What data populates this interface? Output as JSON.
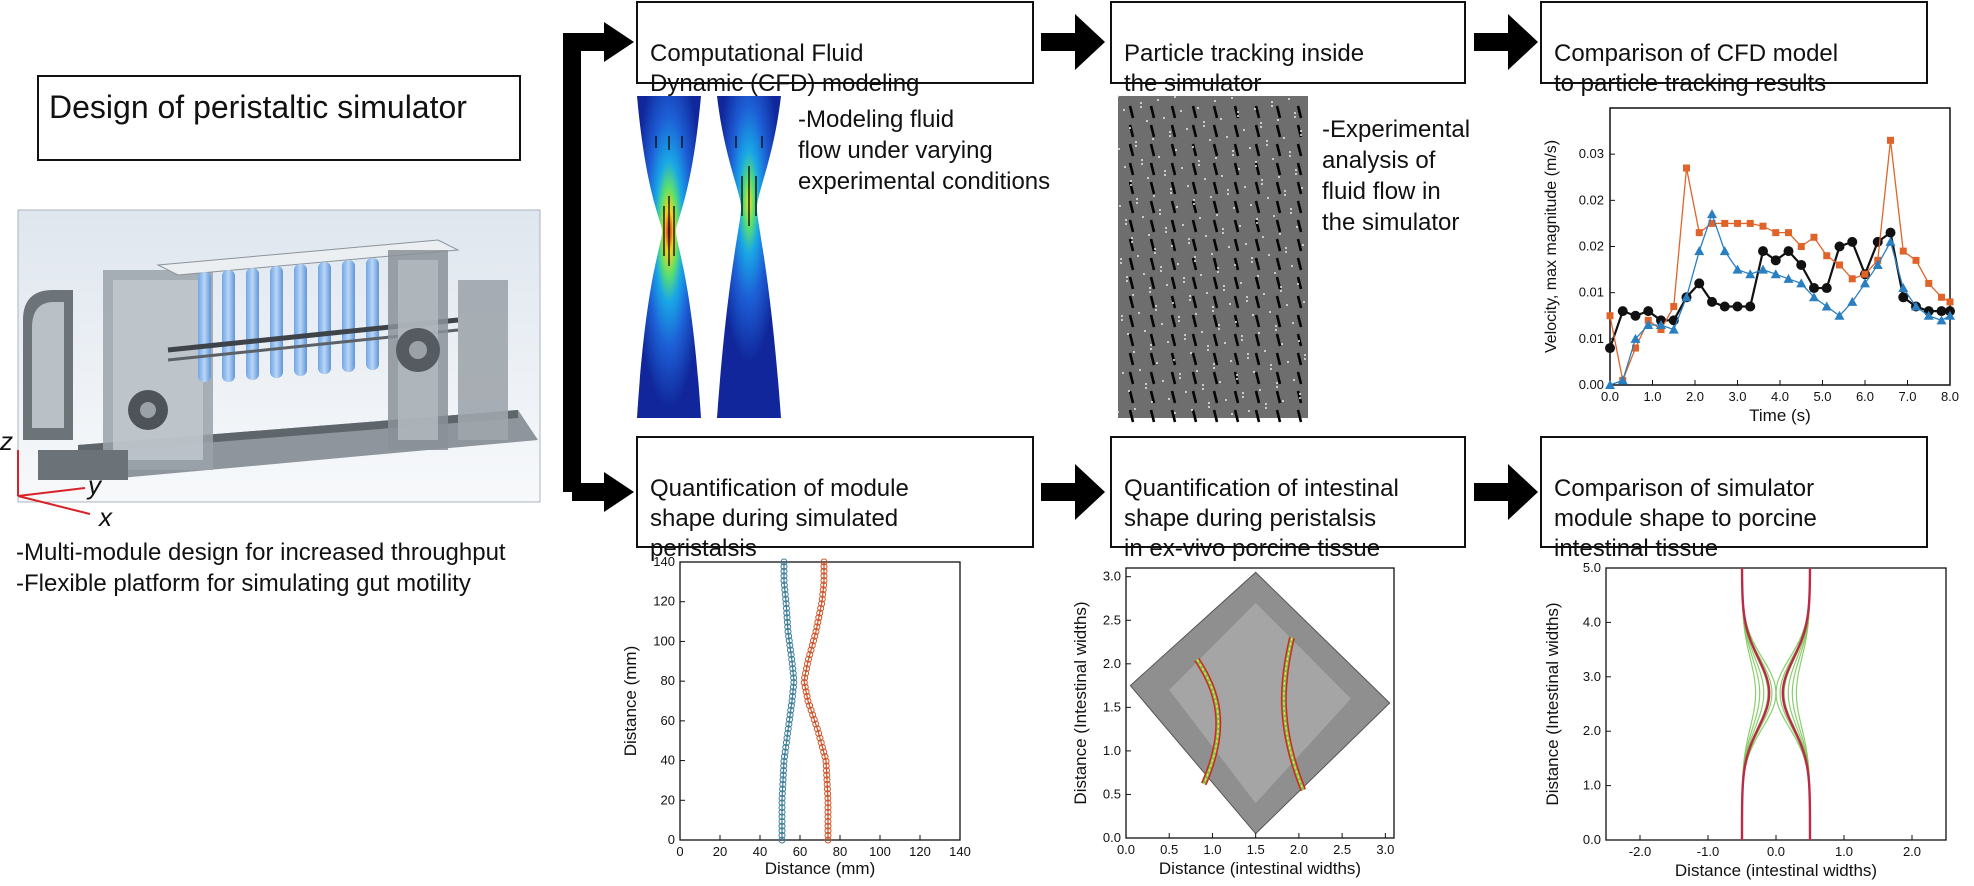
{
  "main_title": "Design of peristaltic simulator",
  "simulator_bullets": [
    "-Multi-module design for increased throughput",
    "-Flexible platform for simulating gut motility"
  ],
  "axes_labels": {
    "z": "z",
    "y": "y",
    "x": "x"
  },
  "top_row": {
    "cfd_title": "Computational Fluid\nDynamic (CFD) modeling",
    "cfd_note": "-Modeling fluid\nflow under varying\nexperimental conditions",
    "piv_title": "Particle tracking inside\nthe simulator",
    "piv_note": "-Experimental\nanalysis of\nfluid flow in\nthe simulator",
    "compare_title": "Comparison of CFD model\nto particle tracking results"
  },
  "bottom_row": {
    "module_title": "Quantification of module\nshape during simulated\nperistalsis",
    "tissue_title": "Quantification of intestinal\nshape during peristalsis\nin ex-vivo porcine tissue",
    "compare_title": "Comparison of simulator\nmodule shape to porcine\nintestinal tissue"
  },
  "colors": {
    "black_series": "#111111",
    "orange_series": "#e0642a",
    "blue_series": "#2a7fc1",
    "green_curve": "#6cc24a",
    "red_curve": "#d8232a",
    "yellow_curve": "#f1e34a"
  },
  "chart_data": [
    {
      "type": "line",
      "xlabel": "Time (s)",
      "ylabel": "Velocity, max magnitude (m/s)",
      "xlim": [
        0,
        8
      ],
      "ylim": [
        0,
        0.03
      ],
      "x_ticks": [
        "0.0",
        "1.0",
        "2.0",
        "3.0",
        "4.0",
        "5.0",
        "6.0",
        "7.0",
        "8.0"
      ],
      "y_ticks": [
        "0.00",
        "0.01",
        "0.01",
        "0.02",
        "0.02",
        "0.03"
      ],
      "y_tick_values": [
        0,
        0.005,
        0.01,
        0.015,
        0.02,
        0.025
      ],
      "series": [
        {
          "color": "black",
          "x": [
            0,
            0.3,
            0.6,
            0.9,
            1.2,
            1.5,
            1.8,
            2.1,
            2.4,
            2.7,
            3.0,
            3.3,
            3.6,
            3.9,
            4.2,
            4.5,
            4.8,
            5.1,
            5.4,
            5.7,
            6.0,
            6.3,
            6.6,
            6.9,
            7.2,
            7.5,
            7.8,
            8.0
          ],
          "y": [
            0.004,
            0.008,
            0.0075,
            0.008,
            0.007,
            0.007,
            0.0095,
            0.011,
            0.009,
            0.0085,
            0.0085,
            0.0085,
            0.0145,
            0.0135,
            0.0145,
            0.013,
            0.0105,
            0.0105,
            0.015,
            0.0155,
            0.012,
            0.0155,
            0.0165,
            0.0095,
            0.0085,
            0.008,
            0.008,
            0.008
          ]
        },
        {
          "color": "orange",
          "x": [
            0,
            0.3,
            0.6,
            0.9,
            1.2,
            1.5,
            1.8,
            2.1,
            2.4,
            2.7,
            3.0,
            3.3,
            3.6,
            3.9,
            4.2,
            4.5,
            4.8,
            5.1,
            5.4,
            5.7,
            6.0,
            6.3,
            6.6,
            6.9,
            7.2,
            7.5,
            7.8,
            8.0
          ],
          "y": [
            0.0075,
            0.0005,
            0.004,
            0.007,
            0.006,
            0.0085,
            0.0235,
            0.0165,
            0.0175,
            0.0175,
            0.0175,
            0.0175,
            0.0172,
            0.0165,
            0.0165,
            0.015,
            0.016,
            0.014,
            0.013,
            0.0115,
            0.012,
            0.0135,
            0.0265,
            0.0145,
            0.0135,
            0.011,
            0.0095,
            0.009
          ]
        },
        {
          "color": "blue",
          "x": [
            0,
            0.3,
            0.6,
            0.9,
            1.2,
            1.5,
            1.8,
            2.1,
            2.4,
            2.7,
            3.0,
            3.3,
            3.6,
            3.9,
            4.2,
            4.5,
            4.8,
            5.1,
            5.4,
            5.7,
            6.0,
            6.3,
            6.6,
            6.9,
            7.2,
            7.5,
            7.8,
            8.0
          ],
          "y": [
            0,
            0.0005,
            0.005,
            0.0065,
            0.0065,
            0.006,
            0.0095,
            0.0145,
            0.0185,
            0.0145,
            0.0125,
            0.012,
            0.0125,
            0.012,
            0.0115,
            0.011,
            0.0095,
            0.0085,
            0.0075,
            0.009,
            0.011,
            0.013,
            0.0155,
            0.0105,
            0.0085,
            0.0075,
            0.007,
            0.0075
          ]
        }
      ]
    },
    {
      "type": "line",
      "xlabel": "Distance (mm)",
      "ylabel": "Distance (mm)",
      "xlim": [
        0,
        140
      ],
      "ylim": [
        0,
        140
      ],
      "x_ticks": [
        "0",
        "20",
        "40",
        "60",
        "80",
        "100",
        "120",
        "140"
      ],
      "y_ticks": [
        "0",
        "20",
        "40",
        "60",
        "80",
        "100",
        "120",
        "140"
      ],
      "series": [
        {
          "color": "teal",
          "x": [
            51,
            51,
            52,
            54,
            56,
            57,
            56,
            54,
            53,
            52,
            52
          ],
          "y": [
            0,
            20,
            40,
            55,
            70,
            80,
            90,
            105,
            120,
            130,
            140
          ]
        },
        {
          "color": "orange",
          "x": [
            74,
            74,
            73,
            69,
            64,
            62,
            64,
            68,
            71,
            72,
            72
          ],
          "y": [
            0,
            20,
            40,
            55,
            70,
            80,
            90,
            105,
            120,
            130,
            140
          ]
        }
      ]
    },
    {
      "type": "line",
      "xlabel": "Distance (intestinal widths)",
      "ylabel": "Distance (Intestinal widths)",
      "xlim": [
        0,
        3.1
      ],
      "ylim": [
        0,
        3.1
      ],
      "x_ticks": [
        "0.0",
        "0.5",
        "1.0",
        "1.5",
        "2.0",
        "2.5",
        "3.0"
      ],
      "y_ticks": [
        "0.0",
        "0.5",
        "1.0",
        "1.5",
        "2.0",
        "2.5",
        "3.0"
      ]
    },
    {
      "type": "line",
      "xlabel": "Distance (intestinal widths)",
      "ylabel": "Distance (Intestinal widths)",
      "xlim": [
        -2.5,
        2.5
      ],
      "ylim": [
        0,
        5
      ],
      "x_ticks": [
        "-2.0",
        "-1.0",
        "0.0",
        "1.0",
        "2.0"
      ],
      "y_ticks": [
        "0.0",
        "1.0",
        "2.0",
        "3.0",
        "4.0",
        "5.0"
      ]
    }
  ]
}
